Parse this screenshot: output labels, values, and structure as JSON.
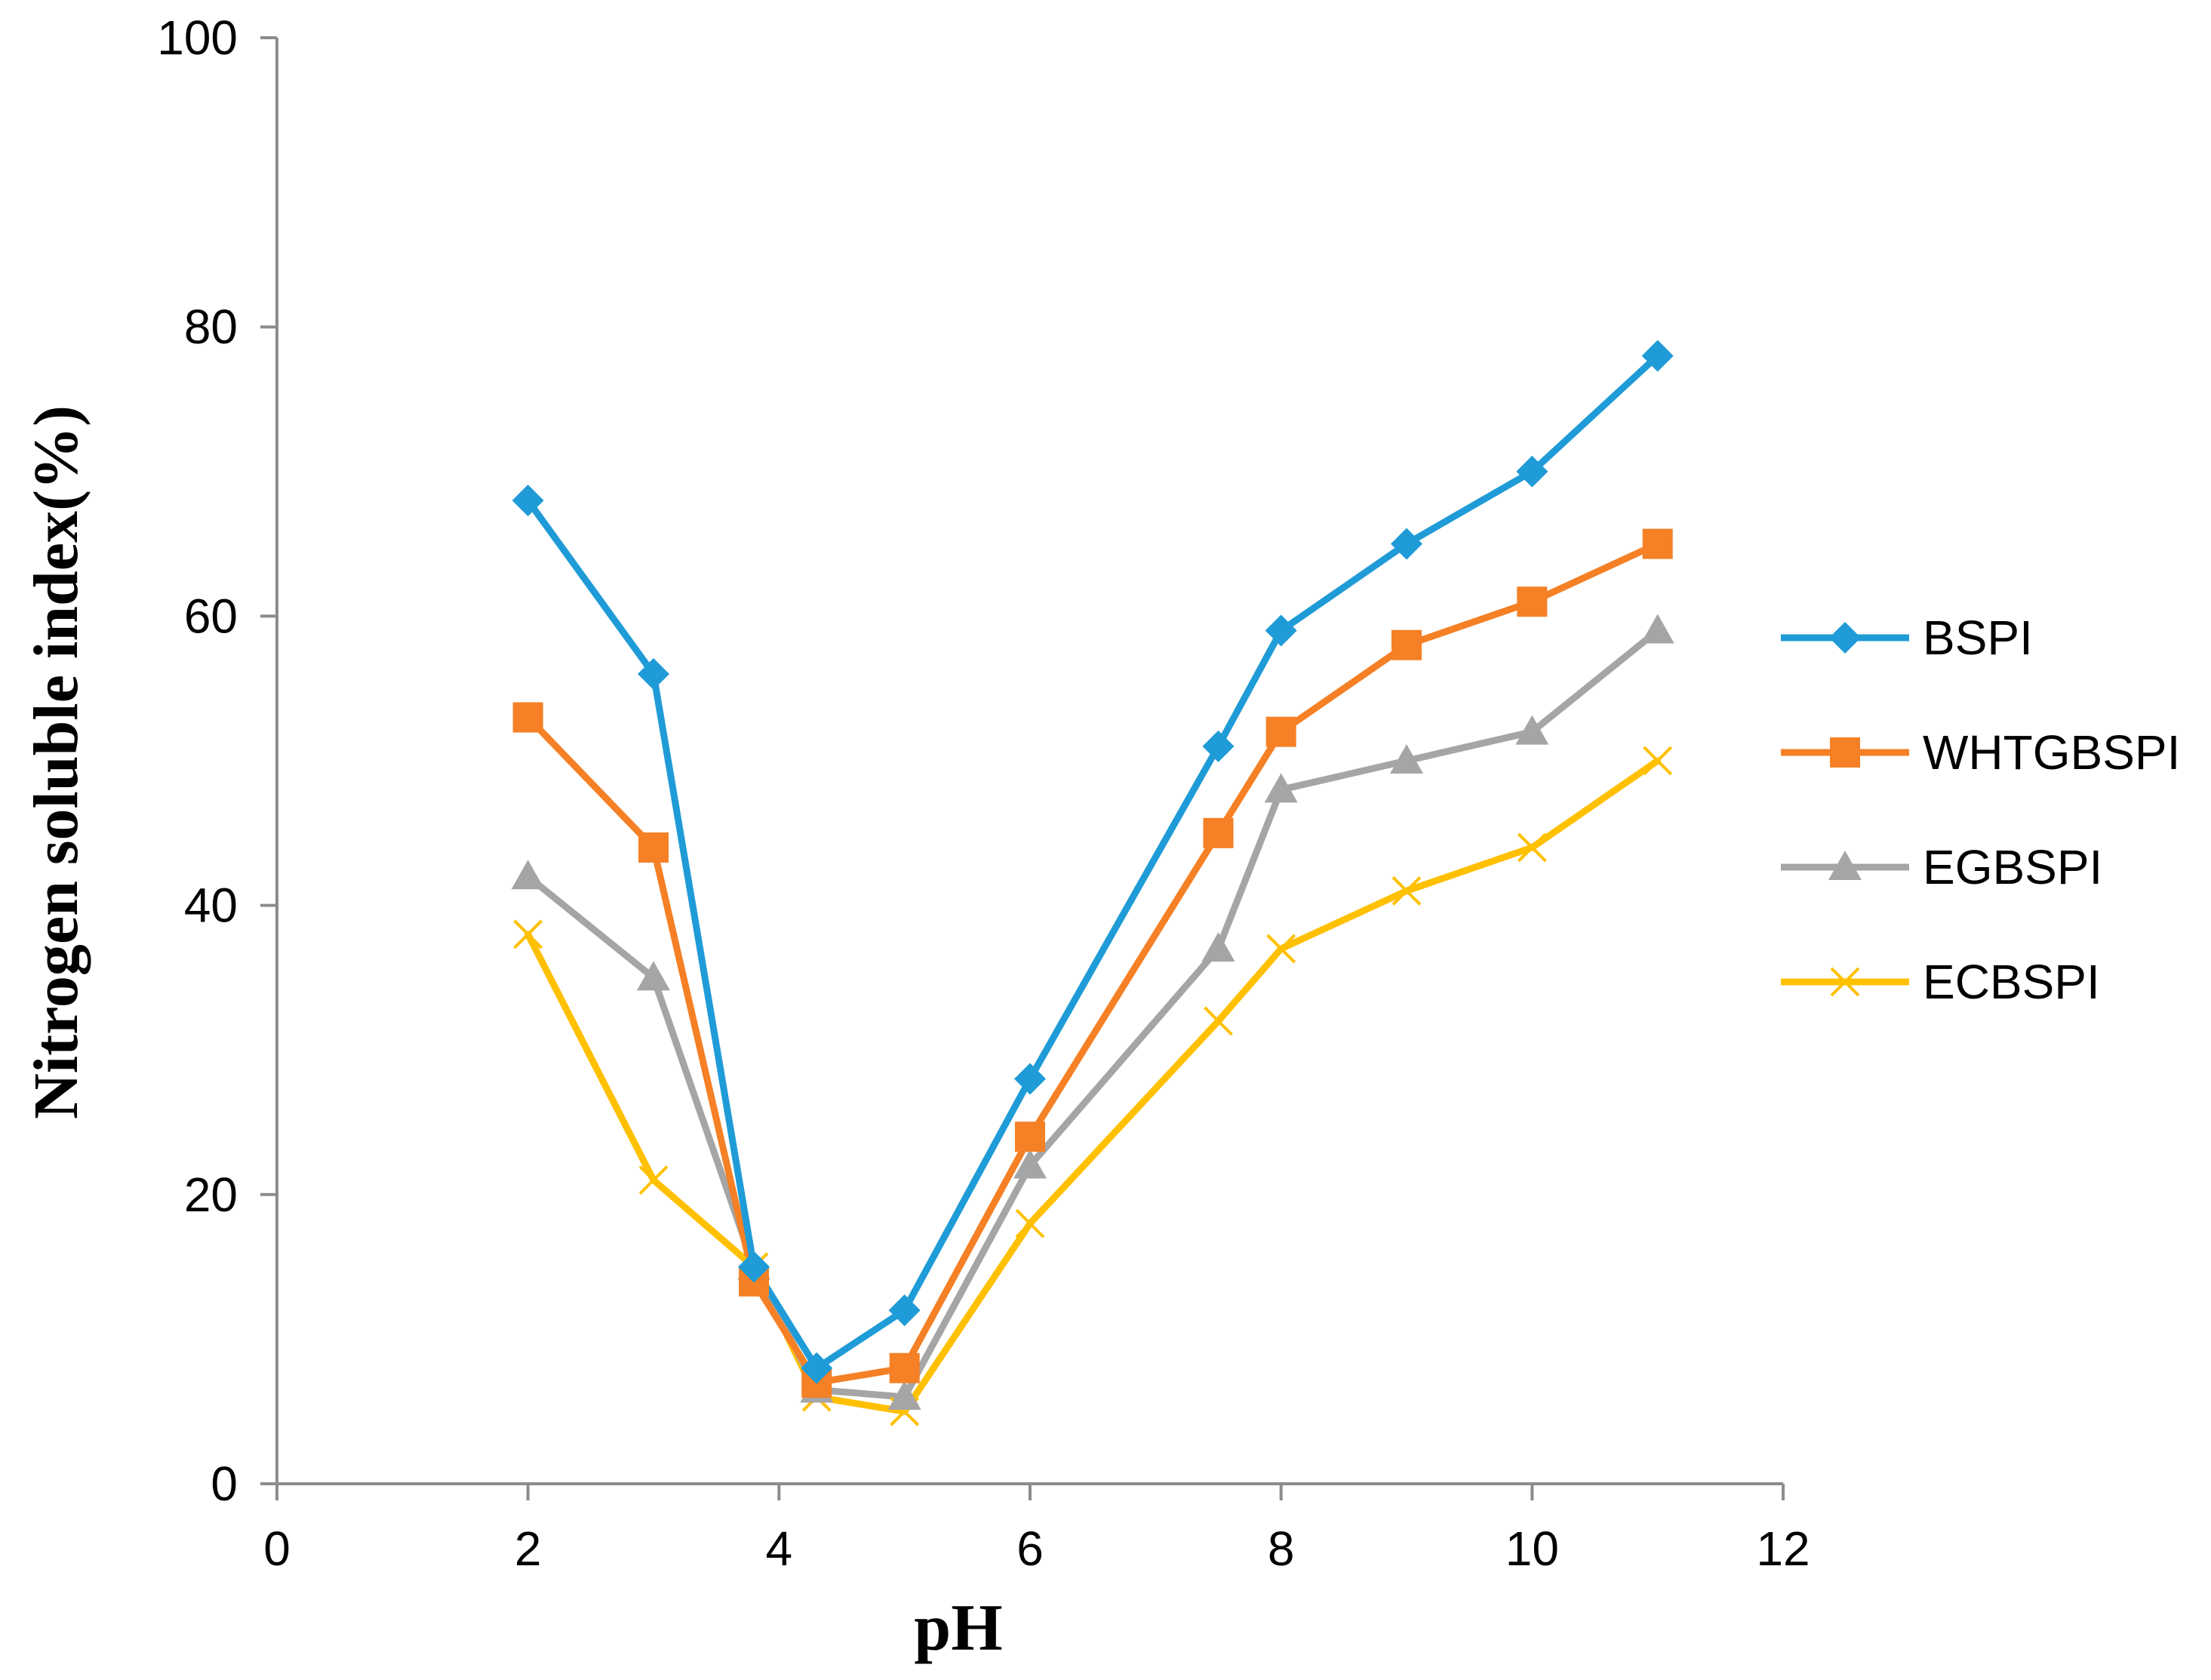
{
  "chart_data": {
    "type": "line",
    "title": "",
    "xlabel": "pH",
    "ylabel": "Nitrogen soluble index(%)",
    "xlim": [
      0,
      12
    ],
    "ylim": [
      0,
      100
    ],
    "xticks": [
      0,
      2,
      4,
      6,
      8,
      10,
      12
    ],
    "yticks": [
      0,
      20,
      40,
      60,
      80,
      100
    ],
    "x_tick_labels": [
      "0",
      "2",
      "4",
      "6",
      "8",
      "10",
      "12"
    ],
    "y_tick_labels": [
      "0",
      "20",
      "40",
      "60",
      "80",
      "100"
    ],
    "grid": false,
    "legend_position": "right",
    "series": [
      {
        "name": "BSPI",
        "color": "#1f9bd7",
        "marker": "diamond",
        "x": [
          2,
          3,
          3.8,
          4.3,
          5,
          6,
          7.5,
          8,
          9,
          10,
          11
        ],
        "values": [
          68,
          56,
          15,
          8,
          12,
          28,
          51,
          59,
          65,
          70,
          78
        ]
      },
      {
        "name": "WHTGBSPI",
        "color": "#f58025",
        "marker": "square",
        "x": [
          2,
          3,
          3.8,
          4.3,
          5,
          6,
          7.5,
          8,
          9,
          10,
          11
        ],
        "values": [
          53,
          44,
          14,
          7,
          8,
          24,
          45,
          52,
          58,
          61,
          65
        ]
      },
      {
        "name": "EGBSPI",
        "color": "#a5a5a5",
        "marker": "triangle",
        "x": [
          2,
          3,
          3.8,
          4.3,
          5,
          6,
          7.5,
          8,
          9,
          10,
          11
        ],
        "values": [
          42,
          35,
          15,
          6.5,
          6,
          22,
          37,
          48,
          50,
          52,
          59
        ]
      },
      {
        "name": "ECBSPI",
        "color": "#ffc000",
        "marker": "x",
        "x": [
          2,
          3,
          3.8,
          4.3,
          5,
          6,
          7.5,
          8,
          9,
          10,
          11
        ],
        "values": [
          38,
          21,
          15,
          6,
          5,
          18,
          32,
          37,
          41,
          44,
          50
        ]
      }
    ]
  }
}
